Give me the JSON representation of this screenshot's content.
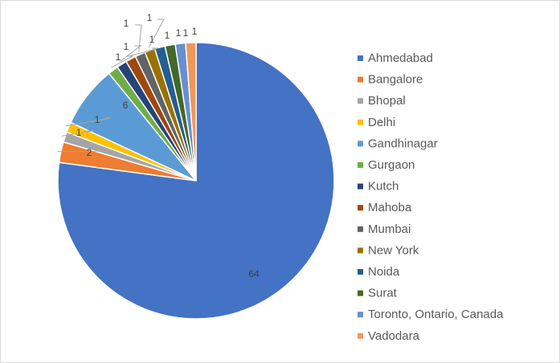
{
  "chart_data": {
    "type": "pie",
    "title": "",
    "legend_position": "right",
    "data_labels": "values",
    "slices": [
      {
        "label": "Ahmedabad",
        "value": 64,
        "color": "#4472C4"
      },
      {
        "label": "Bangalore",
        "value": 2,
        "color": "#ED7D31"
      },
      {
        "label": "Bhopal",
        "value": 1,
        "color": "#A5A5A5"
      },
      {
        "label": "Delhi",
        "value": 1,
        "color": "#FFC000"
      },
      {
        "label": "Gandhinagar",
        "value": 6,
        "color": "#5B9BD5"
      },
      {
        "label": "Gurgaon",
        "value": 1,
        "color": "#70AD47"
      },
      {
        "label": "Kutch",
        "value": 1,
        "color": "#264478"
      },
      {
        "label": "Mahoba",
        "value": 1,
        "color": "#9E480E"
      },
      {
        "label": "Mumbai",
        "value": 1,
        "color": "#636363"
      },
      {
        "label": "New York",
        "value": 1,
        "color": "#997300"
      },
      {
        "label": "Noida",
        "value": 1,
        "color": "#255E91"
      },
      {
        "label": "Surat",
        "value": 1,
        "color": "#43682B"
      },
      {
        "label": "Toronto, Ontario, Canada",
        "value": 1,
        "color": "#698ED0"
      },
      {
        "label": "Vadodara",
        "value": 1,
        "color": "#F1975A"
      }
    ]
  }
}
